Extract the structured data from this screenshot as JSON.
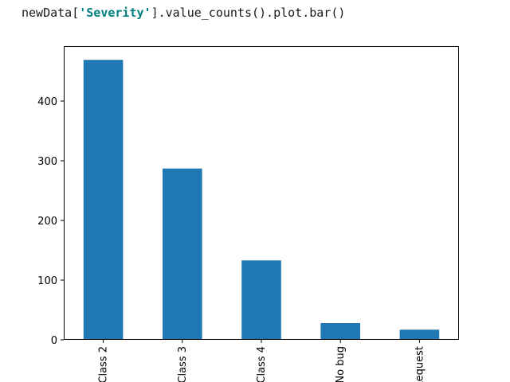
{
  "code": {
    "prefix": "newData[",
    "string_literal": "'Severity'",
    "suffix": "].value_counts().plot.bar()"
  },
  "chart_data": {
    "type": "bar",
    "categories": [
      "Class 2",
      "Class 3",
      "Class 4",
      "No bug",
      "Request"
    ],
    "values": [
      469,
      287,
      133,
      28,
      17
    ],
    "title": "",
    "xlabel": "",
    "ylabel": "",
    "ylim": [
      0,
      492
    ],
    "yticks": [
      0,
      100,
      200,
      300,
      400
    ],
    "grid": false,
    "legend": "none",
    "bar_color": "#1f77b4"
  }
}
